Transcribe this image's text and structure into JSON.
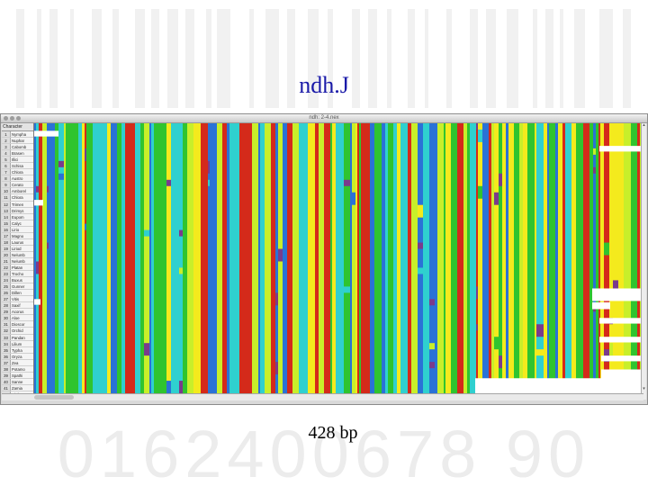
{
  "slide": {
    "title": "ndh.J",
    "caption": "428 bp",
    "title_color": "#1a1aa8",
    "background_watermark": "0162400678 90"
  },
  "window": {
    "title": "ndh: 2-4.nex",
    "names_header": "Character",
    "taxa": [
      {
        "num": "1",
        "name": "Nympha"
      },
      {
        "num": "2",
        "name": "Nuphar"
      },
      {
        "num": "3",
        "name": "Cabomb"
      },
      {
        "num": "4",
        "name": "Brasen"
      },
      {
        "num": "5",
        "name": "Illici"
      },
      {
        "num": "6",
        "name": "Schisa"
      },
      {
        "num": "7",
        "name": "Chlora"
      },
      {
        "num": "8",
        "name": "Austro"
      },
      {
        "num": "9",
        "name": "Cerato"
      },
      {
        "num": "10",
        "name": "Amborel"
      },
      {
        "num": "11",
        "name": "Chlora"
      },
      {
        "num": "12",
        "name": "Trimen"
      },
      {
        "num": "13",
        "name": "Drimys"
      },
      {
        "num": "14",
        "name": "Eupom"
      },
      {
        "num": "15",
        "name": "Calyc"
      },
      {
        "num": "16",
        "name": "Lirio"
      },
      {
        "num": "17",
        "name": "Magno"
      },
      {
        "num": "18",
        "name": "Laurus"
      },
      {
        "num": "19",
        "name": "Liriod"
      },
      {
        "num": "20",
        "name": "Nelumb"
      },
      {
        "num": "21",
        "name": "Nelumb"
      },
      {
        "num": "22",
        "name": "Platan"
      },
      {
        "num": "23",
        "name": "Trocho"
      },
      {
        "num": "24",
        "name": "Buxus"
      },
      {
        "num": "25",
        "name": "Gunner"
      },
      {
        "num": "26",
        "name": "Dillen"
      },
      {
        "num": "27",
        "name": "Vitis"
      },
      {
        "num": "28",
        "name": "Saxif"
      },
      {
        "num": "29",
        "name": "Acorus"
      },
      {
        "num": "30",
        "name": "Aloe"
      },
      {
        "num": "31",
        "name": "Dioscor"
      },
      {
        "num": "32",
        "name": "Orchid"
      },
      {
        "num": "33",
        "name": "Pandan"
      },
      {
        "num": "34",
        "name": "Lilium"
      },
      {
        "num": "35",
        "name": "Typha"
      },
      {
        "num": "36",
        "name": "Oryza"
      },
      {
        "num": "37",
        "name": "Zea"
      },
      {
        "num": "38",
        "name": "Potamo"
      },
      {
        "num": "39",
        "name": "Spathi"
      },
      {
        "num": "40",
        "name": "Sanne"
      },
      {
        "num": "41",
        "name": "Zamia"
      },
      {
        "num": "42",
        "name": "Ginkgo"
      },
      {
        "num": "43",
        "name": "Gnetum"
      }
    ]
  },
  "palette": {
    "red": "#d42a1a",
    "green": "#2fc42f",
    "cyan": "#2fd0cf",
    "blue": "#2a72d6",
    "yellow": "#f4ea1d",
    "lime": "#c8ef2a",
    "white": "#ffffff"
  }
}
